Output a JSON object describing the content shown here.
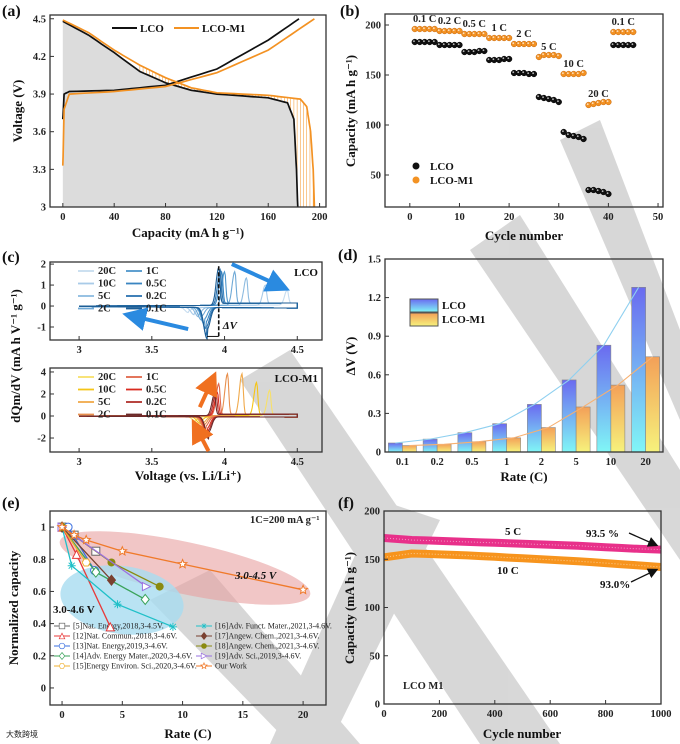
{
  "watermark": {
    "logo_text": "大数跨境"
  },
  "chart_data": [
    {
      "panel": "(a)",
      "type": "line",
      "xlabel": "Capacity (mA h g⁻¹)",
      "ylabel": "Voltage (V)",
      "xlim": [
        -10,
        205
      ],
      "ylim": [
        3,
        4.53
      ],
      "xticks": [
        "0",
        "40",
        "80",
        "120",
        "160",
        "200"
      ],
      "xtick_values": [
        0,
        40,
        80,
        120,
        160,
        200
      ],
      "yticks": [
        "3",
        "3.3",
        "3.6",
        "3.9",
        "4.2",
        "4.5"
      ],
      "ytick_values": [
        3,
        3.3,
        3.6,
        3.9,
        4.2,
        4.5
      ],
      "legend": [
        "LCO",
        "LCO-M1"
      ],
      "legend_position": "top-center",
      "colors": {
        "LCO": "#111111",
        "LCO-M1": "#f39223"
      },
      "series": [
        {
          "name": "LCO charge",
          "x": [
            0,
            1,
            5,
            40,
            80,
            120,
            160,
            184
          ],
          "y": [
            3.7,
            3.9,
            3.92,
            3.93,
            3.97,
            4.1,
            4.33,
            4.5
          ]
        },
        {
          "name": "LCO discharge",
          "x": [
            0,
            20,
            40,
            60,
            80,
            100,
            120,
            160,
            175,
            180,
            182,
            183
          ],
          "y": [
            4.48,
            4.37,
            4.23,
            4.08,
            3.99,
            3.93,
            3.9,
            3.87,
            3.83,
            3.7,
            3.3,
            3.0
          ]
        },
        {
          "name": "LCO-M1 charge",
          "x": [
            0,
            1,
            5,
            40,
            80,
            120,
            160,
            196
          ],
          "y": [
            3.33,
            3.78,
            3.9,
            3.92,
            3.96,
            4.07,
            4.25,
            4.5
          ]
        },
        {
          "name": "LCO-M1 discharge",
          "x": [
            0,
            20,
            40,
            60,
            80,
            100,
            120,
            160,
            185,
            190,
            193,
            195,
            196
          ],
          "y": [
            4.49,
            4.39,
            4.25,
            4.13,
            4.03,
            3.95,
            3.91,
            3.89,
            3.86,
            3.8,
            3.6,
            3.3,
            3.0
          ]
        }
      ]
    },
    {
      "panel": "(b)",
      "type": "scatter",
      "xlabel": "Cycle number",
      "ylabel": "Capacity (mA h g⁻¹)",
      "xlim": [
        -5,
        51
      ],
      "ylim": [
        18,
        211
      ],
      "xticks": [
        "0",
        "10",
        "20",
        "30",
        "40",
        "50"
      ],
      "xtick_values": [
        0,
        10,
        20,
        30,
        40,
        50
      ],
      "yticks": [
        "50",
        "100",
        "150",
        "200"
      ],
      "ytick_values": [
        50,
        100,
        150,
        200
      ],
      "legend": [
        "LCO",
        "LCO-M1"
      ],
      "legend_position": "bottom-left",
      "colors": {
        "LCO": "#111111",
        "LCO-M1": "#f39223"
      },
      "series": [
        {
          "name": "LCO",
          "values": [
            183,
            183,
            183,
            183,
            183,
            180,
            180,
            180,
            180,
            180,
            173,
            173,
            173,
            174,
            174,
            165,
            165,
            165,
            166,
            166,
            152,
            152,
            152,
            151,
            151,
            128,
            127,
            126,
            125,
            123,
            93,
            90,
            89,
            88,
            86,
            35,
            35,
            34,
            33,
            31,
            180,
            180,
            180,
            180,
            180
          ]
        },
        {
          "name": "LCO-M1",
          "values": [
            196,
            196,
            196,
            196,
            196,
            194,
            194,
            194,
            194,
            194,
            191,
            191,
            191,
            191,
            191,
            187,
            187,
            187,
            187,
            187,
            181,
            181,
            181,
            181,
            181,
            168,
            170,
            170,
            170,
            169,
            151,
            151,
            151,
            151,
            152,
            120,
            121,
            122,
            123,
            123,
            193,
            193,
            193,
            193,
            193
          ]
        }
      ],
      "rate_labels": [
        {
          "text": "0.1 C",
          "cycle": 3,
          "capacity": 203
        },
        {
          "text": "0.2 C",
          "cycle": 8,
          "capacity": 201
        },
        {
          "text": "0.5 C",
          "cycle": 13,
          "capacity": 198
        },
        {
          "text": "1 C",
          "cycle": 18,
          "capacity": 194
        },
        {
          "text": "2 C",
          "cycle": 23,
          "capacity": 188
        },
        {
          "text": "5 C",
          "cycle": 28,
          "capacity": 175
        },
        {
          "text": "10 C",
          "cycle": 33,
          "capacity": 158
        },
        {
          "text": "20 C",
          "cycle": 38,
          "capacity": 128
        },
        {
          "text": "0.1 C",
          "cycle": 43,
          "capacity": 200
        }
      ]
    },
    {
      "panel": "(c)",
      "type": "line",
      "xlabel": "Voltage (vs. Li/Li⁺)",
      "ylabel": "dQm/dV (mA h V⁻¹ g⁻¹)",
      "xticks": [
        "3",
        "3.5",
        "4",
        "4.5"
      ],
      "xtick_values": [
        3,
        3.5,
        4,
        4.5
      ],
      "xlim": [
        2.8,
        4.67
      ],
      "annotation": "ΔV",
      "subplots": [
        {
          "title": "LCO",
          "ylim": [
            -1.62,
            2.1
          ],
          "yticks": [
            "-1",
            "0",
            "1",
            "2"
          ],
          "ytick_values": [
            -1,
            0,
            1,
            2
          ],
          "rates": [
            "20C",
            "10C",
            "5C",
            "2C",
            "1C",
            "0.5C",
            "0.2C",
            "0.1C"
          ],
          "colors": [
            "#c6dcef",
            "#a9cbe8",
            "#8dbbe0",
            "#6fa9d6",
            "#4f96cb",
            "#3a85c1",
            "#2a72b0",
            "#1c5e96"
          ],
          "anodic_peak_v": [
            4.43,
            4.28,
            4.15,
            4.07,
            4.0,
            3.98,
            3.97,
            3.96
          ],
          "anodic_peak_h": [
            0.7,
            0.95,
            1.3,
            1.6,
            1.6,
            1.6,
            1.7,
            1.8
          ],
          "cathodic_peak_v": [
            3.75,
            3.79,
            3.82,
            3.84,
            3.86,
            3.87,
            3.875,
            3.88
          ],
          "cathodic_peak_h": [
            -0.25,
            -0.35,
            -0.45,
            -0.6,
            -0.8,
            -1.0,
            -1.3,
            -1.5
          ]
        },
        {
          "title": "LCO-M1",
          "ylim": [
            -3.27,
            4.36
          ],
          "yticks": [
            "-2",
            "0",
            "2",
            "4"
          ],
          "ytick_values": [
            -2,
            0,
            2,
            4
          ],
          "rates": [
            "20C",
            "10C",
            "5C",
            "2C",
            "1C",
            "0.5C",
            "0.2C",
            "0.1C"
          ],
          "colors": [
            "#f7e06a",
            "#f5c518",
            "#f0a94a",
            "#e8904e",
            "#e0664a",
            "#d92b1f",
            "#b0302a",
            "#6b2a2a"
          ],
          "anodic_peak_v": [
            4.31,
            4.22,
            4.12,
            4.02,
            3.96,
            3.95,
            3.94,
            3.93
          ],
          "anodic_peak_h": [
            2.3,
            3.0,
            3.8,
            3.8,
            2.9,
            2.1,
            2.0,
            1.9
          ],
          "cathodic_peak_v": [
            3.8,
            3.83,
            3.85,
            3.86,
            3.87,
            3.88,
            3.885,
            3.89
          ],
          "cathodic_peak_h": [
            -0.4,
            -0.6,
            -0.8,
            -1.0,
            -1.2,
            -1.5,
            -1.8,
            -2.0
          ]
        }
      ]
    },
    {
      "panel": "(d)",
      "type": "bar",
      "xlabel": "Rate (C)",
      "ylabel": "ΔV (V)",
      "categories": [
        "0.1",
        "0.2",
        "0.5",
        "1",
        "2",
        "5",
        "10",
        "20"
      ],
      "ylim": [
        0,
        1.5
      ],
      "yticks": [
        "0",
        "0.3",
        "0.6",
        "0.9",
        "1.2",
        "1.5"
      ],
      "ytick_values": [
        0,
        0.3,
        0.6,
        0.9,
        1.2,
        1.5
      ],
      "legend": [
        "LCO",
        "LCO-M1"
      ],
      "legend_position": "top-left",
      "series": [
        {
          "name": "LCO",
          "values": [
            0.07,
            0.1,
            0.15,
            0.22,
            0.37,
            0.56,
            0.83,
            1.28
          ]
        },
        {
          "name": "LCO-M1",
          "values": [
            0.05,
            0.06,
            0.08,
            0.11,
            0.19,
            0.35,
            0.52,
            0.74
          ]
        }
      ]
    },
    {
      "panel": "(e)",
      "type": "line",
      "xlabel": "Rate (C)",
      "ylabel": "Normalized capacity",
      "xlim": [
        -1,
        21.9
      ],
      "ylim": [
        -0.106,
        1.1
      ],
      "xticks": [
        "0",
        "5",
        "10",
        "15",
        "20"
      ],
      "xtick_values": [
        0,
        5,
        10,
        15,
        20
      ],
      "yticks": [
        "0",
        "0.2",
        "0.4",
        "0.6",
        "0.8",
        "1"
      ],
      "ytick_values": [
        0,
        0.2,
        0.4,
        0.6,
        0.8,
        1
      ],
      "annotations": {
        "note": "1C=200 mA g⁻¹",
        "range_45": "3.0-4.5 V",
        "range_46": "3.0-4.6 V"
      },
      "legend_position": "bottom",
      "series": [
        {
          "name": "[5]Nat. Energy,2018,3-4.5V.",
          "marker": "square",
          "color": "#666666",
          "x": [
            0,
            1,
            2.8
          ],
          "y": [
            1,
            0.95,
            0.85
          ]
        },
        {
          "name": "[12]Nat. Commun.,2018,3-4.6V.",
          "marker": "triangle",
          "color": "#e83a3a",
          "x": [
            0,
            1.2,
            4
          ],
          "y": [
            1,
            0.83,
            0.38
          ]
        },
        {
          "name": "[13]Nat. Energy,2019,3-4.6V.",
          "marker": "circle-open",
          "color": "#3a6fe0",
          "x": [
            0.5,
            2.7
          ],
          "y": [
            1,
            0.73
          ]
        },
        {
          "name": "[14]Adv. Energy Mater.,2020,3-4.6V.",
          "marker": "diamond-open",
          "color": "#3aa35a",
          "x": [
            0,
            2.8,
            6.9
          ],
          "y": [
            1,
            0.72,
            0.55
          ]
        },
        {
          "name": "[15]Energy Environ. Sci.,2020,3-4.6V.",
          "marker": "hexagon",
          "color": "#f0b030",
          "x": [
            0,
            2
          ],
          "y": [
            1,
            0.78
          ]
        },
        {
          "name": "[16]Adv. Funct. Mater.,2021,3-4.6V.",
          "marker": "star-x",
          "color": "#20c0c8",
          "x": [
            0,
            0.8,
            4.6,
            9.2
          ],
          "y": [
            1,
            0.76,
            0.52,
            0.38
          ]
        },
        {
          "name": "[17]Angew. Chem.,2021,3-4.6V.",
          "marker": "diamond",
          "color": "#7a4030",
          "x": [
            0,
            4.1
          ],
          "y": [
            1,
            0.67
          ]
        },
        {
          "name": "[18]Angew. Chem.,2021,3-4.6V.",
          "marker": "circle",
          "color": "#8a8a10",
          "x": [
            0,
            4.1,
            8.1
          ],
          "y": [
            1,
            0.78,
            0.63
          ]
        },
        {
          "name": "[19]Adv. Sci.,2019,3-4.6V.",
          "marker": "triangle-right",
          "color": "#9a70e0",
          "x": [
            0,
            7
          ],
          "y": [
            1,
            0.63
          ]
        },
        {
          "name": "Our Work",
          "marker": "star",
          "color": "#f07a2a",
          "x": [
            0,
            1,
            2,
            5,
            10,
            20
          ],
          "y": [
            1,
            0.95,
            0.92,
            0.85,
            0.77,
            0.61
          ]
        }
      ]
    },
    {
      "panel": "(f)",
      "type": "line",
      "xlabel": "Cycle number",
      "ylabel": "Capacity (mA h g⁻¹)",
      "xlim": [
        0,
        1000
      ],
      "ylim": [
        0,
        200
      ],
      "xticks": [
        "0",
        "200",
        "400",
        "600",
        "800",
        "1000"
      ],
      "xtick_values": [
        0,
        200,
        400,
        600,
        800,
        1000
      ],
      "yticks": [
        "0",
        "50",
        "100",
        "150",
        "200"
      ],
      "ytick_values": [
        0,
        50,
        100,
        150,
        200
      ],
      "sample_label": "LCO M1",
      "series": [
        {
          "name": "5 C",
          "color": "#e8308a",
          "retention": "93.5 %",
          "x": [
            0,
            100,
            300,
            500,
            700,
            900,
            1000
          ],
          "y": [
            172,
            170,
            168,
            166,
            164,
            161,
            160
          ]
        },
        {
          "name": "10 C",
          "color": "#f7941d",
          "retention": "93.0%",
          "x": [
            0,
            100,
            300,
            500,
            700,
            900,
            1000
          ],
          "y": [
            152,
            156,
            154,
            151,
            148,
            144,
            142
          ]
        }
      ]
    }
  ]
}
